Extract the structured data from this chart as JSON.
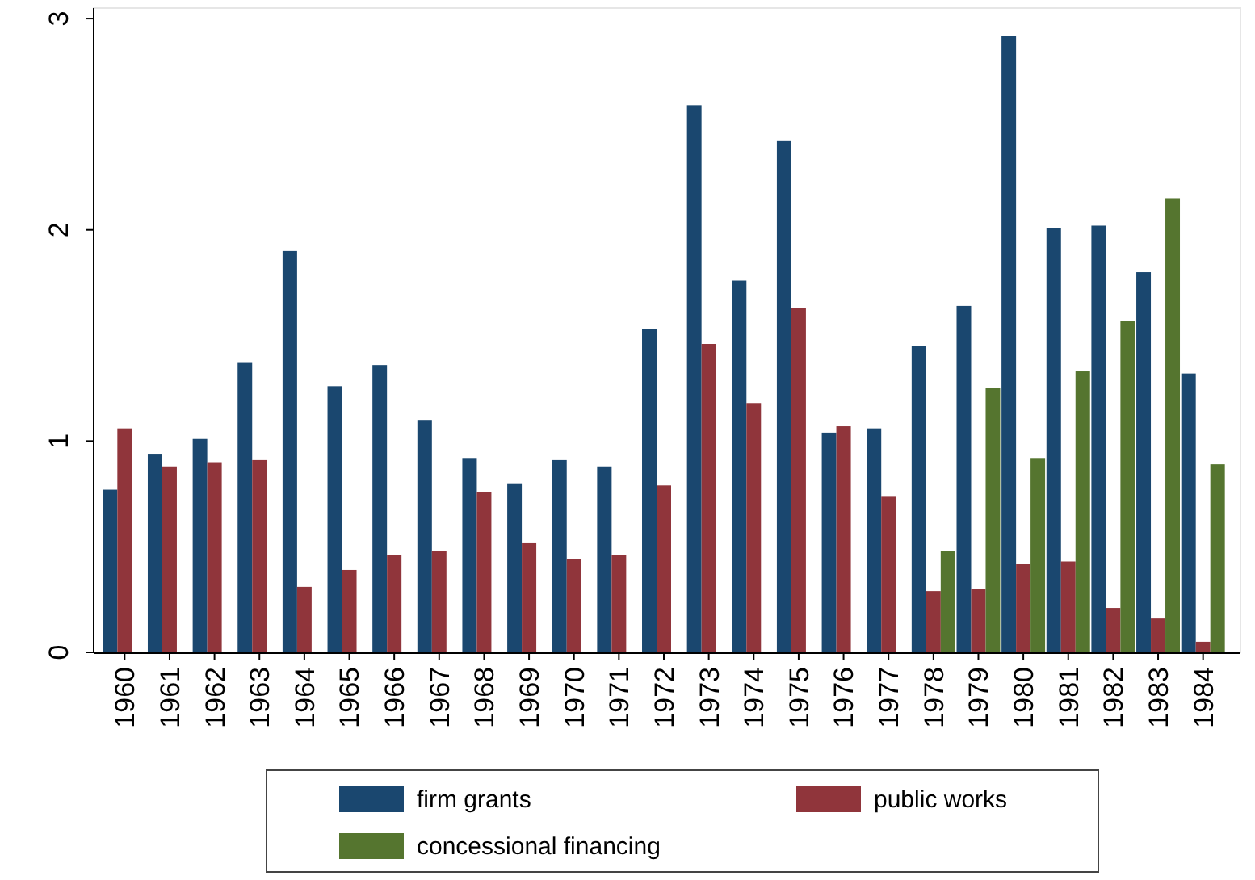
{
  "chart_data": {
    "type": "bar",
    "categories": [
      "1960",
      "1961",
      "1962",
      "1963",
      "1964",
      "1965",
      "1966",
      "1967",
      "1968",
      "1969",
      "1970",
      "1971",
      "1972",
      "1973",
      "1974",
      "1975",
      "1976",
      "1977",
      "1978",
      "1979",
      "1980",
      "1981",
      "1982",
      "1983",
      "1984"
    ],
    "series": [
      {
        "name": "firm grants",
        "color": "#1a476f",
        "values": [
          0.77,
          0.94,
          1.01,
          1.37,
          1.9,
          1.26,
          1.36,
          1.1,
          0.92,
          0.8,
          0.91,
          0.88,
          1.53,
          2.59,
          1.76,
          2.42,
          1.04,
          1.06,
          1.45,
          1.64,
          2.92,
          2.01,
          2.02,
          1.8,
          1.32
        ]
      },
      {
        "name": "public works",
        "color": "#90353b",
        "values": [
          1.06,
          0.88,
          0.9,
          0.91,
          0.31,
          0.39,
          0.46,
          0.48,
          0.76,
          0.52,
          0.44,
          0.46,
          0.79,
          1.46,
          1.18,
          1.63,
          1.07,
          0.74,
          0.29,
          0.3,
          0.42,
          0.43,
          0.21,
          0.16,
          0.05
        ]
      },
      {
        "name": "concessional financing",
        "color": "#55752f",
        "values": [
          null,
          null,
          null,
          null,
          null,
          null,
          null,
          null,
          null,
          null,
          null,
          null,
          null,
          null,
          null,
          null,
          null,
          null,
          0.48,
          1.25,
          0.92,
          1.33,
          1.57,
          2.15,
          0.89
        ]
      }
    ],
    "ylim": [
      0,
      3.05
    ],
    "yticks": [
      0,
      1,
      2,
      3
    ],
    "grid": false,
    "legend": "bottom"
  }
}
